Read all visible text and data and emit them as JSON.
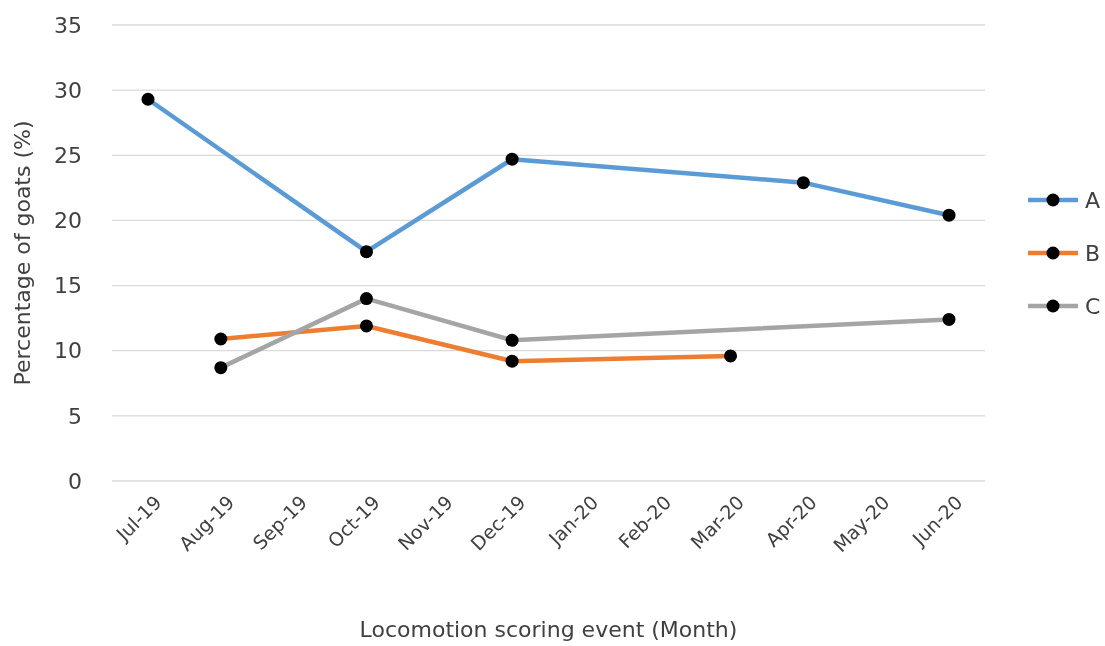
{
  "chart_data": {
    "type": "line",
    "xlabel": "Locomotion scoring event (Month)",
    "ylabel": "Percentage of goats (%)",
    "categories": [
      "Jul-19",
      "Aug-19",
      "Sep-19",
      "Oct-19",
      "Nov-19",
      "Dec-19",
      "Jan-20",
      "Feb-20",
      "Mar-20",
      "Apr-20",
      "May-20",
      "Jun-20"
    ],
    "series": [
      {
        "name": "A",
        "color": "#5b9bd5",
        "values": [
          29.3,
          null,
          null,
          17.6,
          null,
          24.7,
          null,
          null,
          null,
          22.9,
          null,
          20.4
        ]
      },
      {
        "name": "B",
        "color": "#ed7d31",
        "values": [
          null,
          10.9,
          null,
          11.9,
          null,
          9.2,
          null,
          null,
          9.6,
          null,
          null,
          null
        ]
      },
      {
        "name": "C",
        "color": "#a5a5a5",
        "values": [
          null,
          8.7,
          null,
          14.0,
          null,
          10.8,
          null,
          null,
          null,
          null,
          null,
          12.4
        ]
      }
    ],
    "ylim": [
      0,
      35
    ],
    "yticks": [
      0,
      5,
      10,
      15,
      20,
      25,
      30,
      35
    ],
    "grid": "y",
    "legend": "right",
    "marker": "circle",
    "line_style": "solid"
  }
}
